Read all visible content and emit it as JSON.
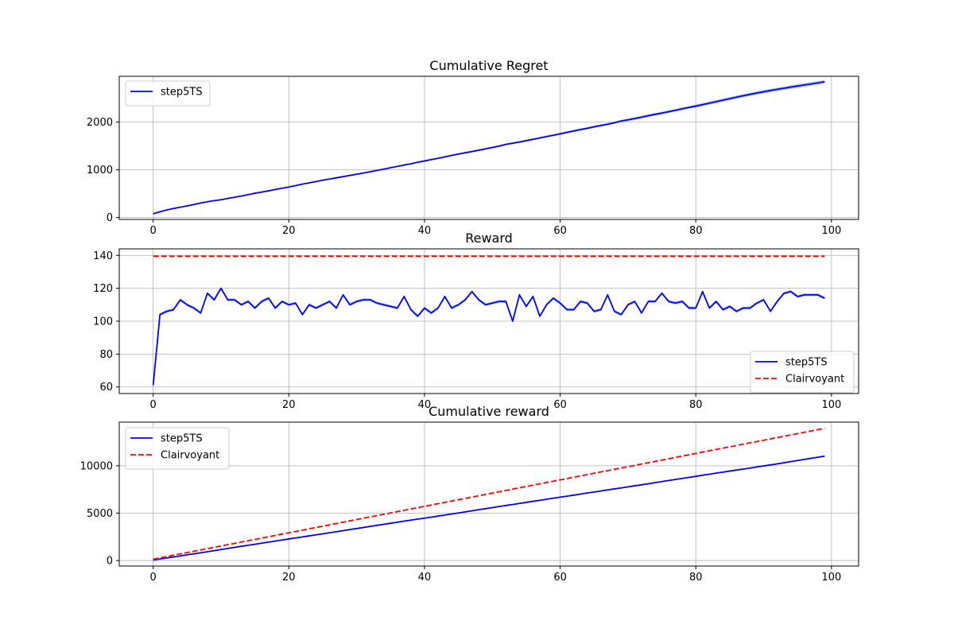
{
  "chart_data": [
    {
      "type": "line",
      "title": "Cumulative Regret",
      "xlabel": "",
      "ylabel": "",
      "xlim": [
        -5,
        104
      ],
      "ylim": [
        -40,
        2960
      ],
      "xticks": [
        0,
        20,
        40,
        60,
        80,
        100
      ],
      "yticks": [
        0,
        1000,
        2000
      ],
      "grid": true,
      "legend_position": "upper left",
      "x": [
        0,
        1,
        2,
        3,
        4,
        5,
        6,
        7,
        8,
        9,
        10,
        11,
        12,
        13,
        14,
        15,
        16,
        17,
        18,
        19,
        20,
        21,
        22,
        23,
        24,
        25,
        26,
        27,
        28,
        29,
        30,
        31,
        32,
        33,
        34,
        35,
        36,
        37,
        38,
        39,
        40,
        41,
        42,
        43,
        44,
        45,
        46,
        47,
        48,
        49,
        50,
        51,
        52,
        53,
        54,
        55,
        56,
        57,
        58,
        59,
        60,
        61,
        62,
        63,
        64,
        65,
        66,
        67,
        68,
        69,
        70,
        71,
        72,
        73,
        74,
        75,
        76,
        77,
        78,
        79,
        80,
        81,
        82,
        83,
        84,
        85,
        86,
        87,
        88,
        89,
        90,
        91,
        92,
        93,
        94,
        95,
        96,
        97,
        98,
        99
      ],
      "series": [
        {
          "name": "step5TS",
          "color": "#0000ff",
          "dash": "solid",
          "band_color": "#aec7e8",
          "band_width": [
            5,
            5,
            5,
            5,
            5,
            5,
            5,
            5,
            5,
            5,
            8,
            8,
            8,
            8,
            8,
            8,
            8,
            8,
            8,
            8,
            10,
            10,
            10,
            10,
            10,
            10,
            10,
            10,
            10,
            10,
            12,
            12,
            12,
            12,
            12,
            12,
            12,
            12,
            12,
            12,
            15,
            15,
            15,
            15,
            15,
            15,
            15,
            15,
            15,
            15,
            20,
            20,
            20,
            20,
            20,
            20,
            20,
            20,
            20,
            20,
            25,
            25,
            25,
            25,
            25,
            25,
            25,
            25,
            25,
            25,
            30,
            30,
            30,
            30,
            30,
            30,
            30,
            30,
            30,
            30,
            35,
            35,
            35,
            35,
            35,
            35,
            35,
            35,
            35,
            35,
            40,
            40,
            40,
            40,
            40,
            40,
            40,
            40,
            40,
            40
          ],
          "values": [
            79,
            121,
            158,
            189,
            216,
            244,
            273,
            303,
            330,
            354,
            373,
            399,
            425,
            449,
            479,
            509,
            533,
            559,
            588,
            614,
            640,
            669,
            700,
            727,
            754,
            783,
            806,
            832,
            857,
            882,
            908,
            933,
            959,
            987,
            1015,
            1044,
            1073,
            1099,
            1127,
            1158,
            1186,
            1214,
            1242,
            1270,
            1302,
            1330,
            1357,
            1382,
            1411,
            1440,
            1468,
            1497,
            1533,
            1558,
            1583,
            1611,
            1640,
            1668,
            1697,
            1724,
            1754,
            1785,
            1815,
            1843,
            1870,
            1902,
            1929,
            1955,
            1987,
            2022,
            2047,
            2075,
            2104,
            2135,
            2163,
            2189,
            2219,
            2247,
            2278,
            2308,
            2336,
            2367,
            2397,
            2428,
            2461,
            2492,
            2523,
            2554,
            2582,
            2610,
            2636,
            2662,
            2687,
            2710,
            2734,
            2757,
            2778,
            2800,
            2822,
            2845
          ]
        }
      ]
    },
    {
      "type": "line",
      "title": "Reward",
      "xlabel": "",
      "ylabel": "",
      "xlim": [
        -5,
        104
      ],
      "ylim": [
        56,
        144
      ],
      "xticks": [
        0,
        20,
        40,
        60,
        80,
        100
      ],
      "yticks": [
        60,
        80,
        100,
        120,
        140
      ],
      "grid": true,
      "legend_position": "lower right",
      "x": [
        0,
        1,
        2,
        3,
        4,
        5,
        6,
        7,
        8,
        9,
        10,
        11,
        12,
        13,
        14,
        15,
        16,
        17,
        18,
        19,
        20,
        21,
        22,
        23,
        24,
        25,
        26,
        27,
        28,
        29,
        30,
        31,
        32,
        33,
        34,
        35,
        36,
        37,
        38,
        39,
        40,
        41,
        42,
        43,
        44,
        45,
        46,
        47,
        48,
        49,
        50,
        51,
        52,
        53,
        54,
        55,
        56,
        57,
        58,
        59,
        60,
        61,
        62,
        63,
        64,
        65,
        66,
        67,
        68,
        69,
        70,
        71,
        72,
        73,
        74,
        75,
        76,
        77,
        78,
        79,
        80,
        81,
        82,
        83,
        84,
        85,
        86,
        87,
        88,
        89,
        90,
        91,
        92,
        93,
        94,
        95,
        96,
        97,
        98,
        99
      ],
      "series": [
        {
          "name": "step5TS",
          "color": "#0000ff",
          "dash": "solid",
          "band_color": "#aec7e8",
          "band_width": 0.9,
          "values": [
            61,
            104,
            106,
            107,
            113,
            110,
            108,
            105,
            117,
            113,
            120,
            113,
            113,
            110,
            112,
            108,
            112,
            114,
            108,
            112,
            110,
            111,
            104,
            110,
            108,
            110,
            112,
            108,
            116,
            110,
            112,
            113,
            113,
            111,
            110,
            109,
            108,
            115,
            107,
            103,
            108,
            105,
            108,
            115,
            108,
            110,
            113,
            118,
            113,
            110,
            111,
            112,
            112,
            100,
            116,
            109,
            115,
            103,
            110,
            114,
            111,
            107,
            107,
            112,
            111,
            106,
            107,
            116,
            106,
            104,
            110,
            112,
            105,
            112,
            112,
            117,
            112,
            111,
            112,
            108,
            108,
            118,
            108,
            112,
            107,
            109,
            106,
            108,
            108,
            111,
            113,
            106,
            112,
            117,
            118,
            115,
            116,
            116,
            116,
            114
          ]
        },
        {
          "name": "Clairvoyant",
          "color": "#ff0000",
          "dash": "dashed",
          "values": [
            139.5,
            139.5,
            139.5,
            139.5,
            139.5,
            139.5,
            139.5,
            139.5,
            139.5,
            139.5,
            139.5,
            139.5,
            139.5,
            139.5,
            139.5,
            139.5,
            139.5,
            139.5,
            139.5,
            139.5,
            139.5,
            139.5,
            139.5,
            139.5,
            139.5,
            139.5,
            139.5,
            139.5,
            139.5,
            139.5,
            139.5,
            139.5,
            139.5,
            139.5,
            139.5,
            139.5,
            139.5,
            139.5,
            139.5,
            139.5,
            139.5,
            139.5,
            139.5,
            139.5,
            139.5,
            139.5,
            139.5,
            139.5,
            139.5,
            139.5,
            139.5,
            139.5,
            139.5,
            139.5,
            139.5,
            139.5,
            139.5,
            139.5,
            139.5,
            139.5,
            139.5,
            139.5,
            139.5,
            139.5,
            139.5,
            139.5,
            139.5,
            139.5,
            139.5,
            139.5,
            139.5,
            139.5,
            139.5,
            139.5,
            139.5,
            139.5,
            139.5,
            139.5,
            139.5,
            139.5,
            139.5,
            139.5,
            139.5,
            139.5,
            139.5,
            139.5,
            139.5,
            139.5,
            139.5,
            139.5,
            139.5,
            139.5,
            139.5,
            139.5,
            139.5,
            139.5,
            139.5,
            139.5,
            139.5,
            139.5
          ]
        }
      ]
    },
    {
      "type": "line",
      "title": "Cumulative reward",
      "xlabel": "",
      "ylabel": "",
      "xlim": [
        -5,
        104
      ],
      "ylim": [
        -580,
        14600
      ],
      "xticks": [
        0,
        20,
        40,
        60,
        80,
        100
      ],
      "yticks": [
        0,
        5000,
        10000
      ],
      "grid": true,
      "legend_position": "upper left",
      "x": [
        0,
        1,
        2,
        3,
        4,
        5,
        6,
        7,
        8,
        9,
        10,
        11,
        12,
        13,
        14,
        15,
        16,
        17,
        18,
        19,
        20,
        21,
        22,
        23,
        24,
        25,
        26,
        27,
        28,
        29,
        30,
        31,
        32,
        33,
        34,
        35,
        36,
        37,
        38,
        39,
        40,
        41,
        42,
        43,
        44,
        45,
        46,
        47,
        48,
        49,
        50,
        51,
        52,
        53,
        54,
        55,
        56,
        57,
        58,
        59,
        60,
        61,
        62,
        63,
        64,
        65,
        66,
        67,
        68,
        69,
        70,
        71,
        72,
        73,
        74,
        75,
        76,
        77,
        78,
        79,
        80,
        81,
        82,
        83,
        84,
        85,
        86,
        87,
        88,
        89,
        90,
        91,
        92,
        93,
        94,
        95,
        96,
        97,
        98,
        99
      ],
      "series": [
        {
          "name": "step5TS",
          "color": "#0000ff",
          "dash": "solid",
          "values": [
            61,
            165,
            271,
            378,
            491,
            601,
            709,
            814,
            931,
            1044,
            1164,
            1277,
            1390,
            1500,
            1612,
            1720,
            1832,
            1946,
            2054,
            2166,
            2276,
            2387,
            2491,
            2601,
            2709,
            2819,
            2931,
            3039,
            3155,
            3265,
            3377,
            3490,
            3603,
            3714,
            3824,
            3933,
            4041,
            4156,
            4263,
            4366,
            4474,
            4579,
            4687,
            4802,
            4910,
            5020,
            5133,
            5251,
            5364,
            5474,
            5585,
            5697,
            5809,
            5909,
            6025,
            6134,
            6249,
            6352,
            6462,
            6576,
            6687,
            6794,
            6901,
            7013,
            7124,
            7230,
            7337,
            7453,
            7559,
            7663,
            7773,
            7885,
            7990,
            8102,
            8214,
            8331,
            8443,
            8554,
            8666,
            8774,
            8882,
            9000,
            9108,
            9220,
            9327,
            9436,
            9542,
            9650,
            9758,
            9869,
            9982,
            10088,
            10200,
            10317,
            10435,
            10550,
            10666,
            10782,
            10898,
            11012
          ]
        },
        {
          "name": "Clairvoyant",
          "color": "#ff0000",
          "dash": "dashed",
          "values": [
            140,
            279,
            419,
            558,
            698,
            837,
            977,
            1116,
            1256,
            1395,
            1535,
            1674,
            1814,
            1953,
            2093,
            2232,
            2372,
            2511,
            2651,
            2790,
            2930,
            3069,
            3209,
            3348,
            3488,
            3627,
            3767,
            3906,
            4046,
            4185,
            4325,
            4464,
            4604,
            4743,
            4883,
            5022,
            5162,
            5301,
            5441,
            5580,
            5720,
            5859,
            5999,
            6138,
            6278,
            6417,
            6557,
            6696,
            6836,
            6975,
            7115,
            7254,
            7394,
            7533,
            7673,
            7812,
            7952,
            8091,
            8231,
            8370,
            8510,
            8649,
            8789,
            8928,
            9068,
            9207,
            9347,
            9486,
            9626,
            9765,
            9905,
            10044,
            10184,
            10323,
            10463,
            10602,
            10742,
            10881,
            11021,
            11160,
            11300,
            11439,
            11579,
            11718,
            11858,
            11997,
            12137,
            12276,
            12416,
            12555,
            12695,
            12834,
            12974,
            13113,
            13253,
            13392,
            13532,
            13671,
            13811,
            13950
          ]
        }
      ]
    }
  ]
}
